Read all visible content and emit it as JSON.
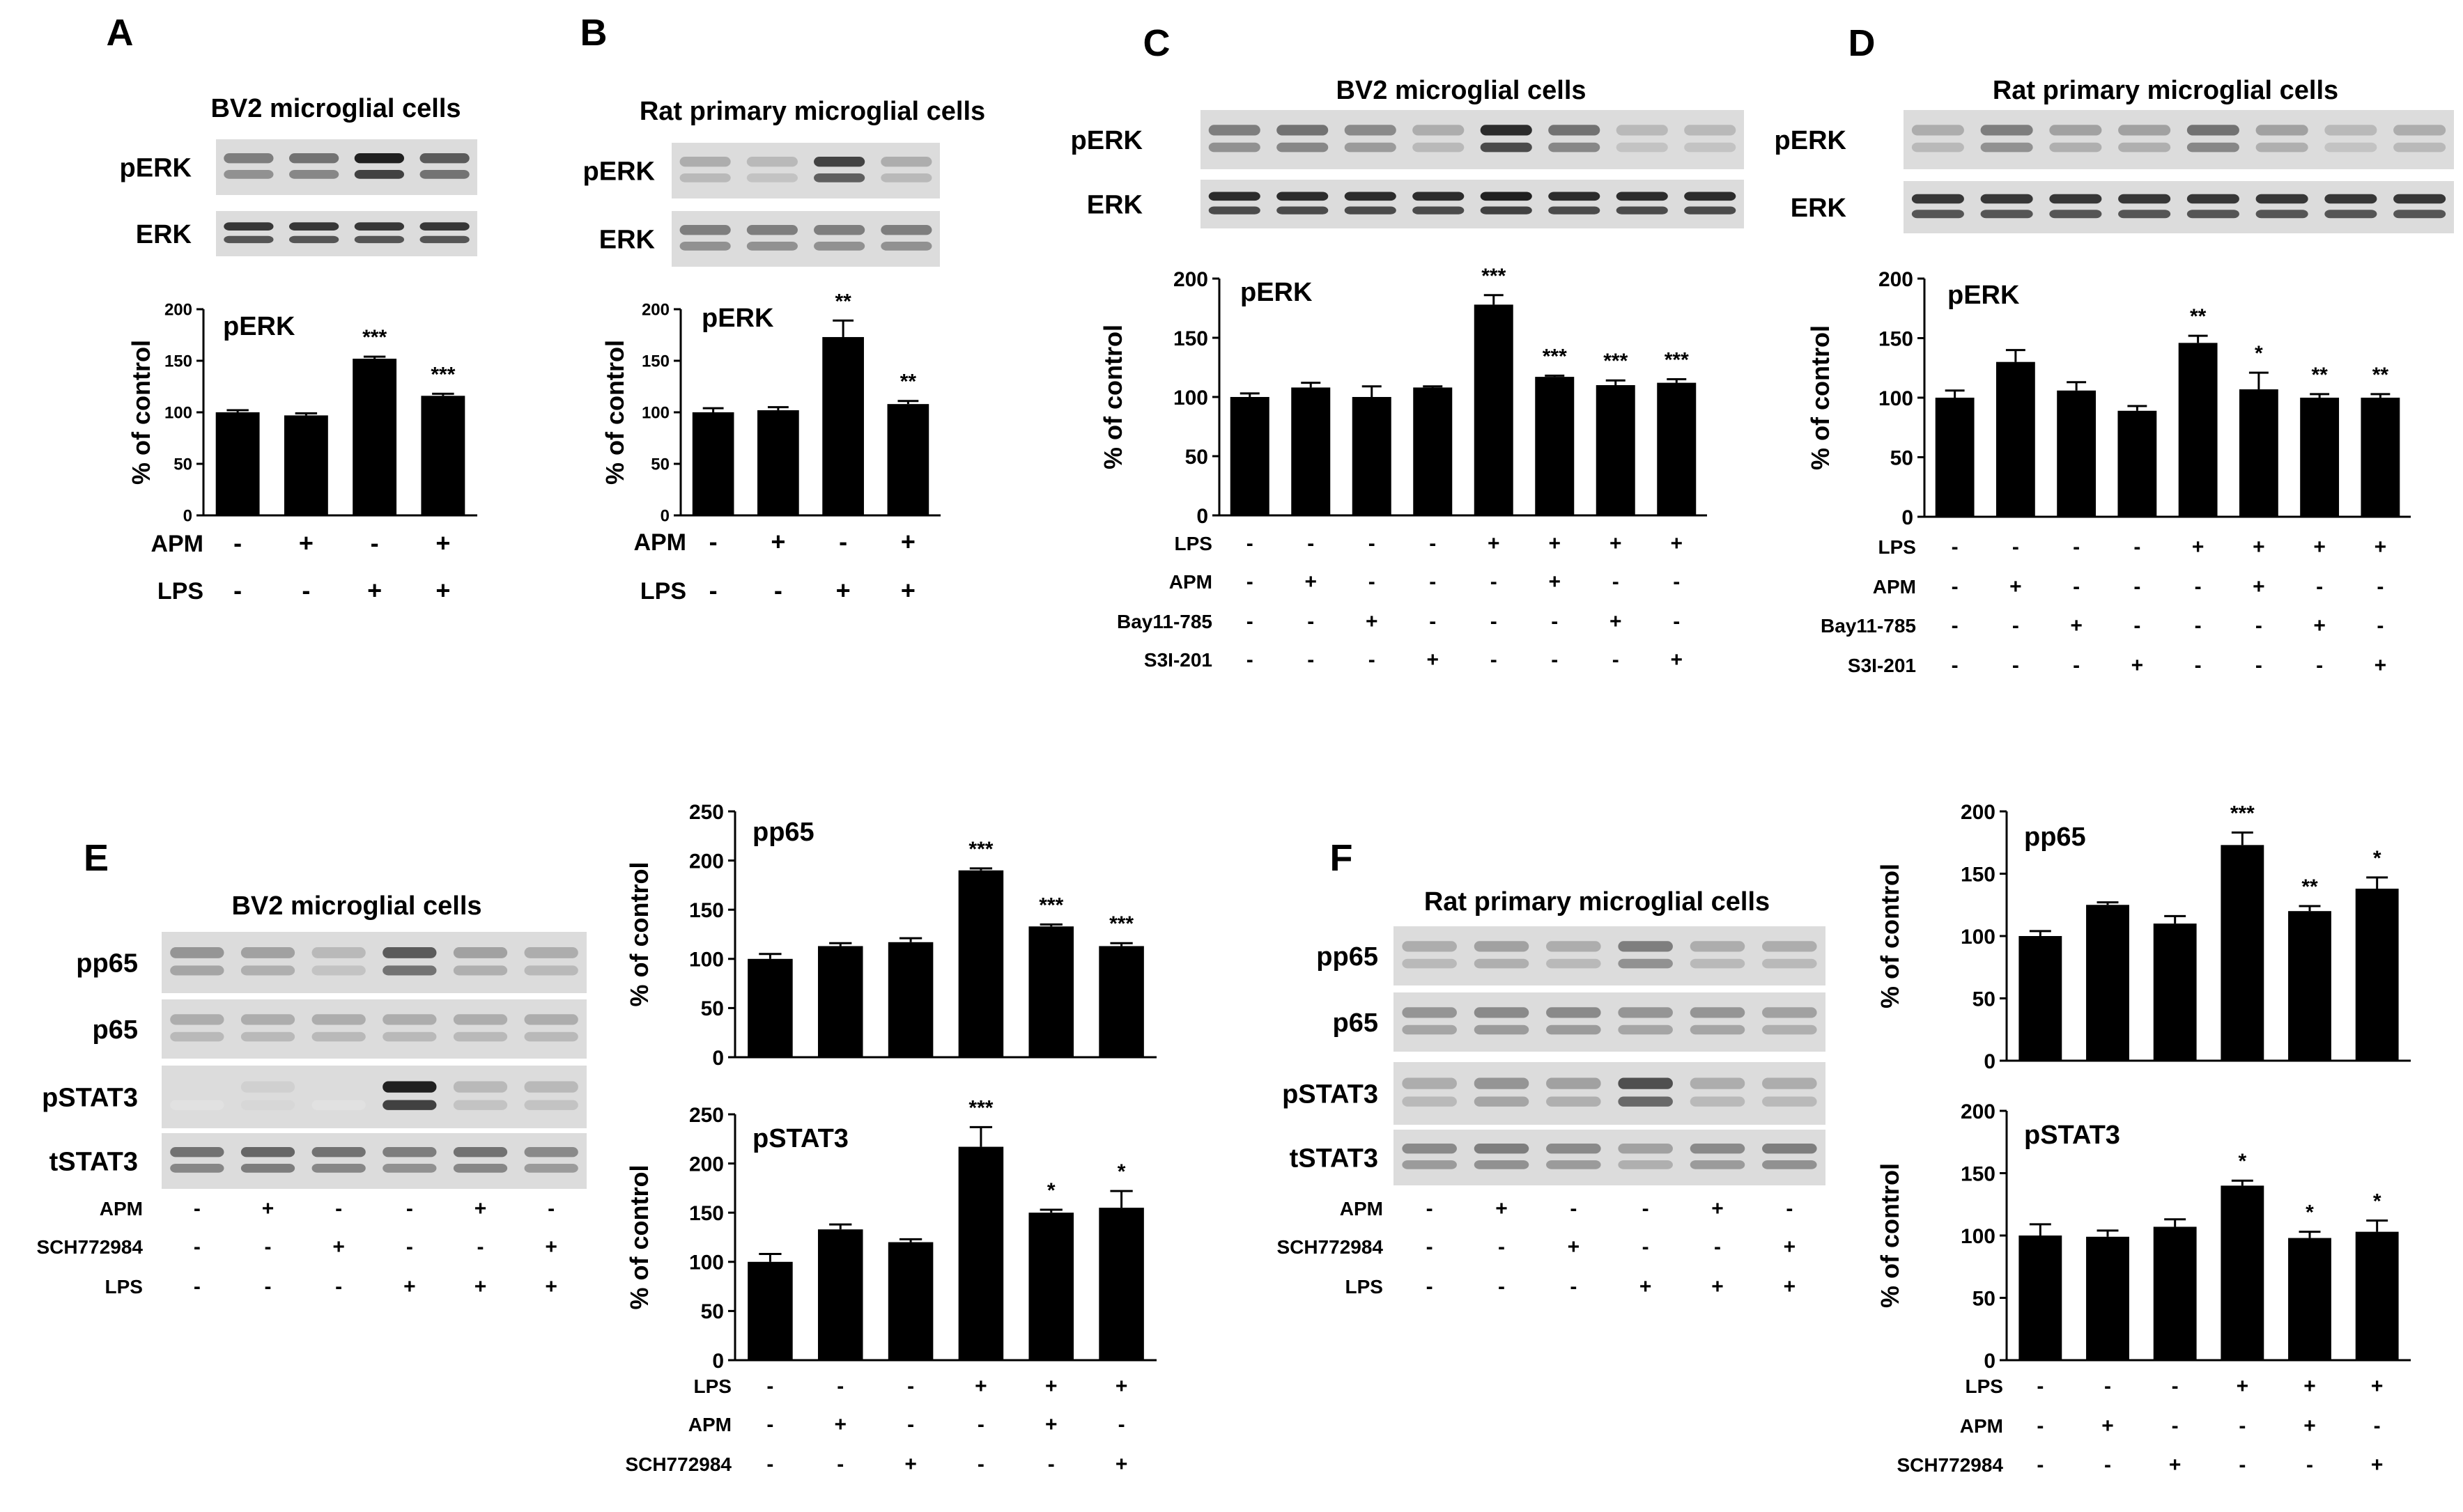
{
  "colors": {
    "bar": "#000000",
    "axis": "#000000",
    "background": "#ffffff"
  },
  "panels": [
    {
      "id": "A",
      "label": "A",
      "title": "BV2 microglial cells",
      "blots": [
        "pERK",
        "ERK"
      ],
      "conditions": [
        {
          "name": "APM",
          "signs": [
            "-",
            "+",
            "-",
            "+"
          ]
        },
        {
          "name": "LPS",
          "signs": [
            "-",
            "-",
            "+",
            "+"
          ]
        }
      ],
      "chart_data": {
        "type": "bar",
        "ylabel": "% of control",
        "inner_label": "pERK",
        "yticks": [
          "0",
          "50",
          "100",
          "150",
          "200"
        ],
        "ylim": [
          0,
          200
        ],
        "values": [
          100,
          97,
          152,
          116
        ],
        "errors": [
          2,
          2,
          2,
          2
        ],
        "annotations": [
          "",
          "",
          "***",
          "***"
        ]
      }
    },
    {
      "id": "B",
      "label": "B",
      "title": "Rat primary microglial cells",
      "blots": [
        "pERK",
        "ERK"
      ],
      "conditions": [
        {
          "name": "APM",
          "signs": [
            "-",
            "+",
            "-",
            "+"
          ]
        },
        {
          "name": "LPS",
          "signs": [
            "-",
            "-",
            "+",
            "+"
          ]
        }
      ],
      "chart_data": {
        "type": "bar",
        "ylabel": "% of control",
        "inner_label": "pERK",
        "yticks": [
          "0",
          "50",
          "100",
          "150",
          "200"
        ],
        "ylim": [
          0,
          200
        ],
        "values": [
          100,
          102,
          173,
          108
        ],
        "errors": [
          4,
          3,
          16,
          3
        ],
        "annotations": [
          "",
          "",
          "**",
          "**"
        ]
      }
    },
    {
      "id": "C",
      "label": "C",
      "title": "BV2 microglial cells",
      "blots": [
        "pERK",
        "ERK"
      ],
      "conditions": [
        {
          "name": "LPS",
          "signs": [
            "-",
            "-",
            "-",
            "-",
            "+",
            "+",
            "+",
            "+"
          ]
        },
        {
          "name": "APM",
          "signs": [
            "-",
            "+",
            "-",
            "-",
            "-",
            "+",
            "-",
            "-"
          ]
        },
        {
          "name": "Bay11-785",
          "signs": [
            "-",
            "-",
            "+",
            "-",
            "-",
            "-",
            "+",
            "-"
          ]
        },
        {
          "name": "S3I-201",
          "signs": [
            "-",
            "-",
            "-",
            "+",
            "-",
            "-",
            "-",
            "+"
          ]
        }
      ],
      "chart_data": {
        "type": "bar",
        "ylabel": "% of control",
        "inner_label": "pERK",
        "yticks": [
          "0",
          "50",
          "100",
          "150",
          "200"
        ],
        "ylim": [
          0,
          200
        ],
        "values": [
          100,
          108,
          100,
          108,
          178,
          117,
          110,
          112
        ],
        "errors": [
          3,
          4,
          9,
          1,
          8,
          1,
          4,
          3
        ],
        "annotations": [
          "",
          "",
          "",
          "",
          "***",
          "***",
          "***",
          "***"
        ]
      }
    },
    {
      "id": "D",
      "label": "D",
      "title": "Rat primary microglial cells",
      "blots": [
        "pERK",
        "ERK"
      ],
      "conditions": [
        {
          "name": "LPS",
          "signs": [
            "-",
            "-",
            "-",
            "-",
            "+",
            "+",
            "+",
            "+"
          ]
        },
        {
          "name": "APM",
          "signs": [
            "-",
            "+",
            "-",
            "-",
            "-",
            "+",
            "-",
            "-"
          ]
        },
        {
          "name": "Bay11-785",
          "signs": [
            "-",
            "-",
            "+",
            "-",
            "-",
            "-",
            "+",
            "-"
          ]
        },
        {
          "name": "S3I-201",
          "signs": [
            "-",
            "-",
            "-",
            "+",
            "-",
            "-",
            "-",
            "+"
          ]
        }
      ],
      "chart_data": {
        "type": "bar",
        "ylabel": "% of control",
        "inner_label": "pERK",
        "yticks": [
          "0",
          "50",
          "100",
          "150",
          "200"
        ],
        "ylim": [
          0,
          200
        ],
        "values": [
          100,
          130,
          106,
          89,
          146,
          107,
          100,
          100
        ],
        "errors": [
          6,
          10,
          7,
          4,
          6,
          14,
          3,
          3
        ],
        "annotations": [
          "",
          "",
          "",
          "",
          "**",
          "*",
          "**",
          "**"
        ]
      }
    },
    {
      "id": "E",
      "label": "E",
      "title": "BV2 microglial cells",
      "blots": [
        "pp65",
        "p65",
        "pSTAT3",
        "tSTAT3"
      ],
      "blot_conditions": [
        {
          "name": "APM",
          "signs": [
            "-",
            "+",
            "-",
            "-",
            "+",
            "-"
          ]
        },
        {
          "name": "SCH772984",
          "signs": [
            "-",
            "-",
            "+",
            "-",
            "-",
            "+"
          ]
        },
        {
          "name": "LPS",
          "signs": [
            "-",
            "-",
            "-",
            "+",
            "+",
            "+"
          ]
        }
      ],
      "conditions": [
        {
          "name": "LPS",
          "signs": [
            "-",
            "-",
            "-",
            "+",
            "+",
            "+"
          ]
        },
        {
          "name": "APM",
          "signs": [
            "-",
            "+",
            "-",
            "-",
            "+",
            "-"
          ]
        },
        {
          "name": "SCH772984",
          "signs": [
            "-",
            "-",
            "+",
            "-",
            "-",
            "+"
          ]
        }
      ],
      "charts": [
        {
          "type": "bar",
          "ylabel": "% of control",
          "inner_label": "pp65",
          "yticks": [
            "0",
            "50",
            "100",
            "150",
            "200",
            "250"
          ],
          "ylim": [
            0,
            250
          ],
          "values": [
            100,
            113,
            117,
            190,
            133,
            113
          ],
          "errors": [
            5,
            3,
            4,
            2,
            2,
            3
          ],
          "annotations": [
            "",
            "",
            "",
            "***",
            "***",
            "***"
          ]
        },
        {
          "type": "bar",
          "ylabel": "% of control",
          "inner_label": "pSTAT3",
          "yticks": [
            "0",
            "50",
            "100",
            "150",
            "200",
            "250"
          ],
          "ylim": [
            0,
            250
          ],
          "values": [
            100,
            133,
            120,
            217,
            150,
            155
          ],
          "errors": [
            8,
            5,
            3,
            20,
            3,
            17
          ],
          "annotations": [
            "",
            "",
            "",
            "***",
            "*",
            "*"
          ]
        }
      ]
    },
    {
      "id": "F",
      "label": "F",
      "title": "Rat primary microglial cells",
      "blots": [
        "pp65",
        "p65",
        "pSTAT3",
        "tSTAT3"
      ],
      "blot_conditions": [
        {
          "name": "APM",
          "signs": [
            "-",
            "+",
            "-",
            "-",
            "+",
            "-"
          ]
        },
        {
          "name": "SCH772984",
          "signs": [
            "-",
            "-",
            "+",
            "-",
            "-",
            "+"
          ]
        },
        {
          "name": "LPS",
          "signs": [
            "-",
            "-",
            "-",
            "+",
            "+",
            "+"
          ]
        }
      ],
      "conditions": [
        {
          "name": "LPS",
          "signs": [
            "-",
            "-",
            "-",
            "+",
            "+",
            "+"
          ]
        },
        {
          "name": "APM",
          "signs": [
            "-",
            "+",
            "-",
            "-",
            "+",
            "-"
          ]
        },
        {
          "name": "SCH772984",
          "signs": [
            "-",
            "-",
            "+",
            "-",
            "-",
            "+"
          ]
        }
      ],
      "charts": [
        {
          "type": "bar",
          "ylabel": "% of control",
          "inner_label": "pp65",
          "yticks": [
            "0",
            "50",
            "100",
            "150",
            "200"
          ],
          "ylim": [
            0,
            200
          ],
          "values": [
            100,
            125,
            110,
            173,
            120,
            138
          ],
          "errors": [
            4,
            2,
            6,
            10,
            4,
            9
          ],
          "annotations": [
            "",
            "",
            "",
            "***",
            "**",
            "*"
          ]
        },
        {
          "type": "bar",
          "ylabel": "% of control",
          "inner_label": "pSTAT3",
          "yticks": [
            "0",
            "50",
            "100",
            "150",
            "200"
          ],
          "ylim": [
            0,
            200
          ],
          "values": [
            100,
            99,
            107,
            140,
            98,
            103
          ],
          "errors": [
            9,
            5,
            6,
            4,
            5,
            9
          ],
          "annotations": [
            "",
            "",
            "",
            "*",
            "*",
            "*"
          ]
        }
      ]
    }
  ]
}
